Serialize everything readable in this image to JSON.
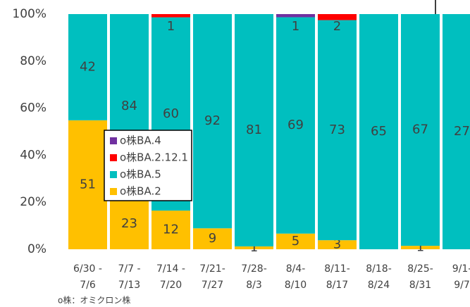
{
  "chart_data": {
    "type": "stacked_percent",
    "categories": [
      [
        "6/30 -",
        "7/6"
      ],
      [
        "7/7 -",
        "7/13"
      ],
      [
        "7/14 -",
        "7/20"
      ],
      [
        "7/21-",
        "7/27"
      ],
      [
        "7/28-",
        "8/3"
      ],
      [
        "8/4-",
        "8/10"
      ],
      [
        "8/11-",
        "8/17"
      ],
      [
        "8/18-",
        "8/24"
      ],
      [
        "8/25-",
        "8/31"
      ],
      [
        "9/1-",
        "9/7"
      ]
    ],
    "series": [
      {
        "name": "o株BA.2",
        "color": "#ffc000",
        "values": [
          51,
          23,
          12,
          9,
          1,
          5,
          3,
          null,
          1,
          null
        ]
      },
      {
        "name": "o株BA.5",
        "color": "#00bfbf",
        "values": [
          42,
          84,
          60,
          92,
          81,
          69,
          73,
          65,
          67,
          27
        ]
      },
      {
        "name": "o株BA.2.12.1",
        "color": "#ff0000",
        "values": [
          null,
          null,
          1,
          null,
          null,
          null,
          2,
          null,
          null,
          null
        ]
      },
      {
        "name": "o株BA.4",
        "color": "#7030a0",
        "values": [
          null,
          null,
          null,
          null,
          null,
          1,
          null,
          null,
          null,
          null
        ]
      }
    ],
    "ylim": [
      0,
      100
    ],
    "yticks": [
      {
        "value": 0,
        "label": "0%"
      },
      {
        "value": 20,
        "label": "20%"
      },
      {
        "value": 40,
        "label": "40%"
      },
      {
        "value": 60,
        "label": "60%"
      },
      {
        "value": 80,
        "label": "80%"
      },
      {
        "value": 100,
        "label": "100%"
      }
    ],
    "footnote": "o株：オミクロン株"
  }
}
